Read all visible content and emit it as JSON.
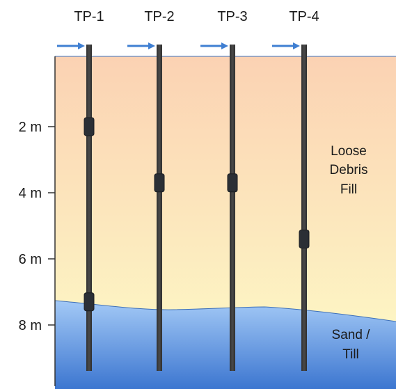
{
  "pipes": [
    {
      "label": "TP-1",
      "sensor_depths_m": [
        2.0,
        7.3
      ]
    },
    {
      "label": "TP-2",
      "sensor_depths_m": [
        3.7
      ]
    },
    {
      "label": "TP-3",
      "sensor_depths_m": [
        3.7
      ]
    },
    {
      "label": "TP-4",
      "sensor_depths_m": [
        5.4
      ]
    }
  ],
  "depth_axis": {
    "ticks": [
      "2 m",
      "4 m",
      "6 m",
      "8 m"
    ],
    "tick_values_m": [
      2,
      4,
      6,
      8
    ]
  },
  "layers": {
    "upper": {
      "label_lines": [
        "Loose",
        "Debris",
        "Fill"
      ]
    },
    "lower": {
      "label_lines": [
        "Sand /",
        "Till"
      ]
    }
  },
  "colors": {
    "fill_top": "#fbd2b3",
    "fill_bottom": "#fdf6c4",
    "sand_top": "#a3c9f6",
    "sand_bottom": "#3c76d0",
    "pipe": "#3a3a3a",
    "arrow": "#3f7fd2",
    "axis": "#333333"
  }
}
